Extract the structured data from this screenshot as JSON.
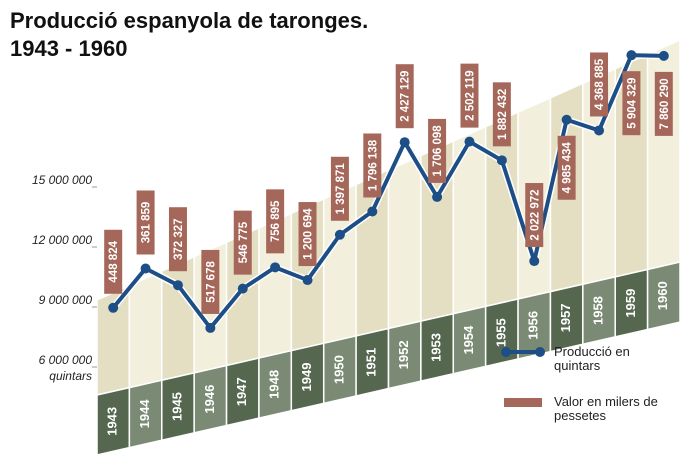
{
  "chart_data": {
    "type": "line",
    "title": "Producció espanyola de taronges.",
    "subtitle": "1943 - 1960",
    "y_label": "quintars",
    "categories": [
      "1943",
      "1944",
      "1945",
      "1946",
      "1947",
      "1948",
      "1949",
      "1950",
      "1951",
      "1952",
      "1953",
      "1954",
      "1955",
      "1956",
      "1957",
      "1958",
      "1959",
      "1960"
    ],
    "series": [
      {
        "name": "Producció en quintars",
        "color": "#1d4f86",
        "values": [
          8700000,
          10300000,
          9100000,
          6600000,
          8200000,
          8900000,
          7900000,
          9800000,
          10600000,
          13700000,
          10600000,
          13000000,
          11700000,
          6300000,
          13000000,
          12100000,
          15500000,
          15100000
        ]
      },
      {
        "name": "Valor en milers de pessetes",
        "color": "#a5675a",
        "type": "label",
        "values": [
          448824,
          361859,
          372327,
          517678,
          546775,
          756895,
          1200694,
          1397871,
          1796138,
          2427129,
          1706098,
          2502119,
          1882432,
          2022972,
          4985434,
          4368885,
          5904329,
          7860290
        ],
        "value_labels": [
          "448 824",
          "361 859",
          "372 327",
          "517 678",
          "546 775",
          "756 895",
          "1 200 694",
          "1 397 871",
          "1 796 138",
          "2 427 129",
          "1 706 098",
          "2 502 119",
          "1 882 432",
          "2 022 972",
          "4 985 434",
          "4 368 885",
          "5 904 329",
          "7 860 290"
        ]
      }
    ],
    "ylim": [
      6000000,
      16000000
    ],
    "yticks": [
      {
        "value": 6000000,
        "label": "6 000 000"
      },
      {
        "value": 9000000,
        "label": "9 000 000"
      },
      {
        "value": 12000000,
        "label": "12 000 000"
      },
      {
        "value": 15000000,
        "label": "15 000 000"
      }
    ],
    "legend": "lower right"
  }
}
